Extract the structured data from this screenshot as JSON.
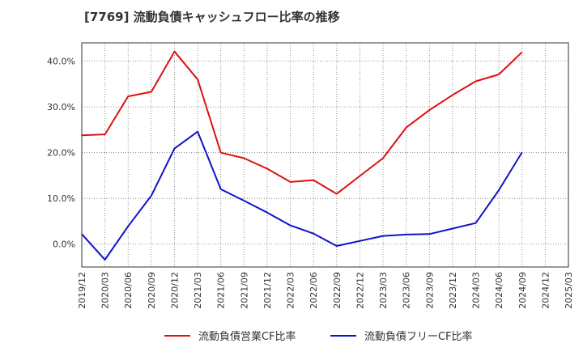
{
  "chart_data": {
    "type": "line",
    "title": "[7769]  流動負債キャッシュフロー比率の推移",
    "xlabel": "",
    "ylabel": "",
    "ylim": [
      -5,
      44
    ],
    "yticks": [
      {
        "value": 0,
        "label": "0.0%"
      },
      {
        "value": 10,
        "label": "10.0%"
      },
      {
        "value": 20,
        "label": "20.0%"
      },
      {
        "value": 30,
        "label": "30.0%"
      },
      {
        "value": 40,
        "label": "40.0%"
      }
    ],
    "xticks": [
      "2019/12",
      "2020/03",
      "2020/06",
      "2020/09",
      "2020/12",
      "2021/03",
      "2021/06",
      "2021/09",
      "2021/12",
      "2022/03",
      "2022/06",
      "2022/09",
      "2022/12",
      "2023/03",
      "2023/06",
      "2023/09",
      "2023/12",
      "2024/03",
      "2024/06",
      "2024/09",
      "2024/12",
      "2025/03"
    ],
    "grid": true,
    "legend_position": "bottom",
    "series": [
      {
        "name": "流動負債営業CF比率",
        "color": "#dd1111",
        "points": [
          {
            "x": "2019/12",
            "y": 23.8
          },
          {
            "x": "2020/03",
            "y": 24.0
          },
          {
            "x": "2020/06",
            "y": 32.3
          },
          {
            "x": "2020/09",
            "y": 33.3
          },
          {
            "x": "2020/12",
            "y": 42.1
          },
          {
            "x": "2021/03",
            "y": 36.0
          },
          {
            "x": "2021/06",
            "y": 20.0
          },
          {
            "x": "2021/09",
            "y": 18.8
          },
          {
            "x": "2021/12",
            "y": 16.5
          },
          {
            "x": "2022/03",
            "y": 13.6
          },
          {
            "x": "2022/06",
            "y": 14.0
          },
          {
            "x": "2022/09",
            "y": 11.0
          },
          {
            "x": "2022/12",
            "y": 14.9
          },
          {
            "x": "2023/03",
            "y": 18.8
          },
          {
            "x": "2023/06",
            "y": 25.5
          },
          {
            "x": "2023/09",
            "y": 29.3
          },
          {
            "x": "2023/12",
            "y": 32.6
          },
          {
            "x": "2024/03",
            "y": 35.6
          },
          {
            "x": "2024/06",
            "y": 37.1
          },
          {
            "x": "2024/09",
            "y": 42.0
          }
        ]
      },
      {
        "name": "流動負債フリーCF比率",
        "color": "#1111cc",
        "points": [
          {
            "x": "2019/12",
            "y": 2.2
          },
          {
            "x": "2020/03",
            "y": -3.4
          },
          {
            "x": "2020/06",
            "y": 3.9
          },
          {
            "x": "2020/09",
            "y": 10.6
          },
          {
            "x": "2020/12",
            "y": 20.9
          },
          {
            "x": "2021/03",
            "y": 24.6
          },
          {
            "x": "2021/06",
            "y": 12.0
          },
          {
            "x": "2021/09",
            "y": 9.5
          },
          {
            "x": "2021/12",
            "y": 6.9
          },
          {
            "x": "2022/03",
            "y": 4.1
          },
          {
            "x": "2022/06",
            "y": 2.3
          },
          {
            "x": "2022/09",
            "y": -0.4
          },
          {
            "x": "2022/12",
            "y": 0.7
          },
          {
            "x": "2023/03",
            "y": 1.8
          },
          {
            "x": "2023/06",
            "y": 2.1
          },
          {
            "x": "2023/09",
            "y": 2.2
          },
          {
            "x": "2023/12",
            "y": 3.4
          },
          {
            "x": "2024/03",
            "y": 4.6
          },
          {
            "x": "2024/06",
            "y": 11.8
          },
          {
            "x": "2024/09",
            "y": 20.1
          }
        ]
      }
    ]
  }
}
